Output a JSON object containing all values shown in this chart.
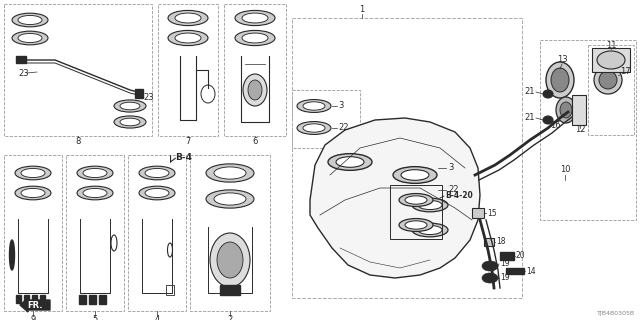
{
  "bg_color": "#ffffff",
  "dc": "#2a2a2a",
  "bc": "#888888",
  "figsize": [
    6.4,
    3.2
  ],
  "dpi": 100,
  "footer": "TJB4B0305B"
}
